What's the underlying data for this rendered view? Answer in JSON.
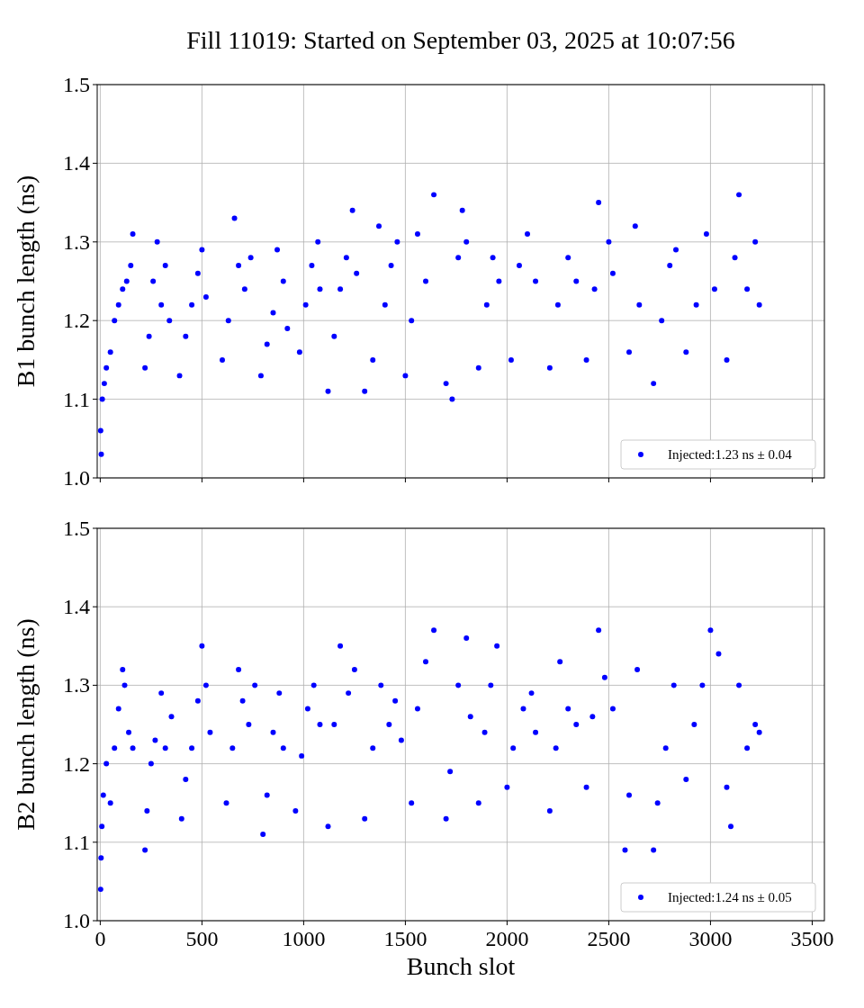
{
  "chart_data": [
    {
      "type": "scatter",
      "title": "Fill 11019: Started on September 03, 2025 at 10:07:56",
      "ylabel": "B1 bunch length (ns)",
      "marker": "circle",
      "grid": true,
      "legend": "bottom right",
      "tick_labels": "y",
      "xlim": [
        -15,
        3560
      ],
      "xticks": [
        0,
        500,
        1000,
        1500,
        2000,
        2500,
        3000,
        3500
      ],
      "ylim": [
        1.0,
        1.5
      ],
      "yticks": [
        {
          "value": 1.0,
          "label": "1.0"
        },
        1.1,
        1.2,
        1.3,
        1.4,
        1.5
      ],
      "series": [
        {
          "name": "Injected:1.23 ns ± 0.04",
          "color": "#0000ff",
          "x": [
            2,
            5,
            10,
            20,
            30,
            50,
            70,
            90,
            110,
            130,
            150,
            160,
            220,
            240,
            260,
            280,
            300,
            320,
            340,
            390,
            420,
            450,
            480,
            500,
            520,
            600,
            630,
            660,
            680,
            710,
            740,
            790,
            820,
            850,
            870,
            900,
            920,
            980,
            1010,
            1040,
            1070,
            1080,
            1120,
            1150,
            1180,
            1210,
            1240,
            1260,
            1300,
            1340,
            1370,
            1400,
            1430,
            1460,
            1500,
            1530,
            1560,
            1600,
            1640,
            1700,
            1730,
            1760,
            1780,
            1800,
            1860,
            1900,
            1930,
            1960,
            2020,
            2060,
            2100,
            2140,
            2210,
            2250,
            2300,
            2340,
            2390,
            2430,
            2450,
            2500,
            2520,
            2600,
            2630,
            2650,
            2720,
            2760,
            2800,
            2830,
            2880,
            2930,
            2980,
            3020,
            3080,
            3120,
            3140,
            3180,
            3220,
            3240
          ],
          "values": [
            1.06,
            1.03,
            1.1,
            1.12,
            1.14,
            1.16,
            1.2,
            1.22,
            1.24,
            1.25,
            1.27,
            1.31,
            1.14,
            1.18,
            1.25,
            1.3,
            1.22,
            1.27,
            1.2,
            1.13,
            1.18,
            1.22,
            1.26,
            1.29,
            1.23,
            1.15,
            1.2,
            1.33,
            1.27,
            1.24,
            1.28,
            1.13,
            1.17,
            1.21,
            1.29,
            1.25,
            1.19,
            1.16,
            1.22,
            1.27,
            1.3,
            1.24,
            1.11,
            1.18,
            1.24,
            1.28,
            1.34,
            1.26,
            1.11,
            1.15,
            1.32,
            1.22,
            1.27,
            1.3,
            1.13,
            1.2,
            1.31,
            1.25,
            1.36,
            1.12,
            1.1,
            1.28,
            1.34,
            1.3,
            1.14,
            1.22,
            1.28,
            1.25,
            1.15,
            1.27,
            1.31,
            1.25,
            1.14,
            1.22,
            1.28,
            1.25,
            1.15,
            1.24,
            1.35,
            1.3,
            1.26,
            1.16,
            1.32,
            1.22,
            1.12,
            1.2,
            1.27,
            1.29,
            1.16,
            1.22,
            1.31,
            1.24,
            1.15,
            1.28,
            1.36,
            1.24,
            1.3,
            1.22
          ]
        }
      ]
    },
    {
      "type": "scatter",
      "ylabel": "B2 bunch length (ns)",
      "xlabel": "Bunch slot",
      "marker": "circle",
      "grid": true,
      "legend": "bottom right",
      "xlim": [
        -15,
        3560
      ],
      "xticks": [
        0,
        500,
        1000,
        1500,
        2000,
        2500,
        3000,
        3500
      ],
      "ylim": [
        1.0,
        1.5
      ],
      "yticks": [
        {
          "value": 1.0,
          "label": "1.0"
        },
        1.1,
        1.2,
        1.3,
        1.4,
        1.5
      ],
      "series": [
        {
          "name": "Injected:1.24 ns ± 0.05",
          "color": "#0000ff",
          "x": [
            2,
            4,
            8,
            15,
            30,
            50,
            70,
            90,
            110,
            120,
            140,
            160,
            220,
            230,
            250,
            270,
            300,
            320,
            350,
            400,
            420,
            450,
            480,
            500,
            520,
            540,
            620,
            650,
            680,
            700,
            730,
            760,
            800,
            820,
            850,
            880,
            900,
            960,
            990,
            1020,
            1050,
            1080,
            1120,
            1150,
            1180,
            1220,
            1250,
            1300,
            1340,
            1380,
            1420,
            1450,
            1480,
            1530,
            1560,
            1600,
            1640,
            1700,
            1720,
            1760,
            1800,
            1820,
            1860,
            1890,
            1920,
            1950,
            2000,
            2030,
            2080,
            2120,
            2140,
            2210,
            2240,
            2260,
            2300,
            2340,
            2390,
            2420,
            2450,
            2480,
            2520,
            2580,
            2600,
            2640,
            2720,
            2740,
            2780,
            2820,
            2880,
            2920,
            2960,
            3000,
            3040,
            3080,
            3100,
            3140,
            3180,
            3220,
            3240
          ],
          "values": [
            1.04,
            1.08,
            1.12,
            1.16,
            1.2,
            1.15,
            1.22,
            1.27,
            1.32,
            1.3,
            1.24,
            1.22,
            1.09,
            1.14,
            1.2,
            1.23,
            1.29,
            1.22,
            1.26,
            1.13,
            1.18,
            1.22,
            1.28,
            1.35,
            1.3,
            1.24,
            1.15,
            1.22,
            1.32,
            1.28,
            1.25,
            1.3,
            1.11,
            1.16,
            1.24,
            1.29,
            1.22,
            1.14,
            1.21,
            1.27,
            1.3,
            1.25,
            1.12,
            1.25,
            1.35,
            1.29,
            1.32,
            1.13,
            1.22,
            1.3,
            1.25,
            1.28,
            1.23,
            1.15,
            1.27,
            1.33,
            1.37,
            1.13,
            1.19,
            1.3,
            1.36,
            1.26,
            1.15,
            1.24,
            1.3,
            1.35,
            1.17,
            1.22,
            1.27,
            1.29,
            1.24,
            1.14,
            1.22,
            1.33,
            1.27,
            1.25,
            1.17,
            1.26,
            1.37,
            1.31,
            1.27,
            1.09,
            1.16,
            1.32,
            1.09,
            1.15,
            1.22,
            1.3,
            1.18,
            1.25,
            1.3,
            1.37,
            1.34,
            1.17,
            1.12,
            1.3,
            1.22,
            1.25,
            1.24
          ]
        }
      ]
    }
  ]
}
